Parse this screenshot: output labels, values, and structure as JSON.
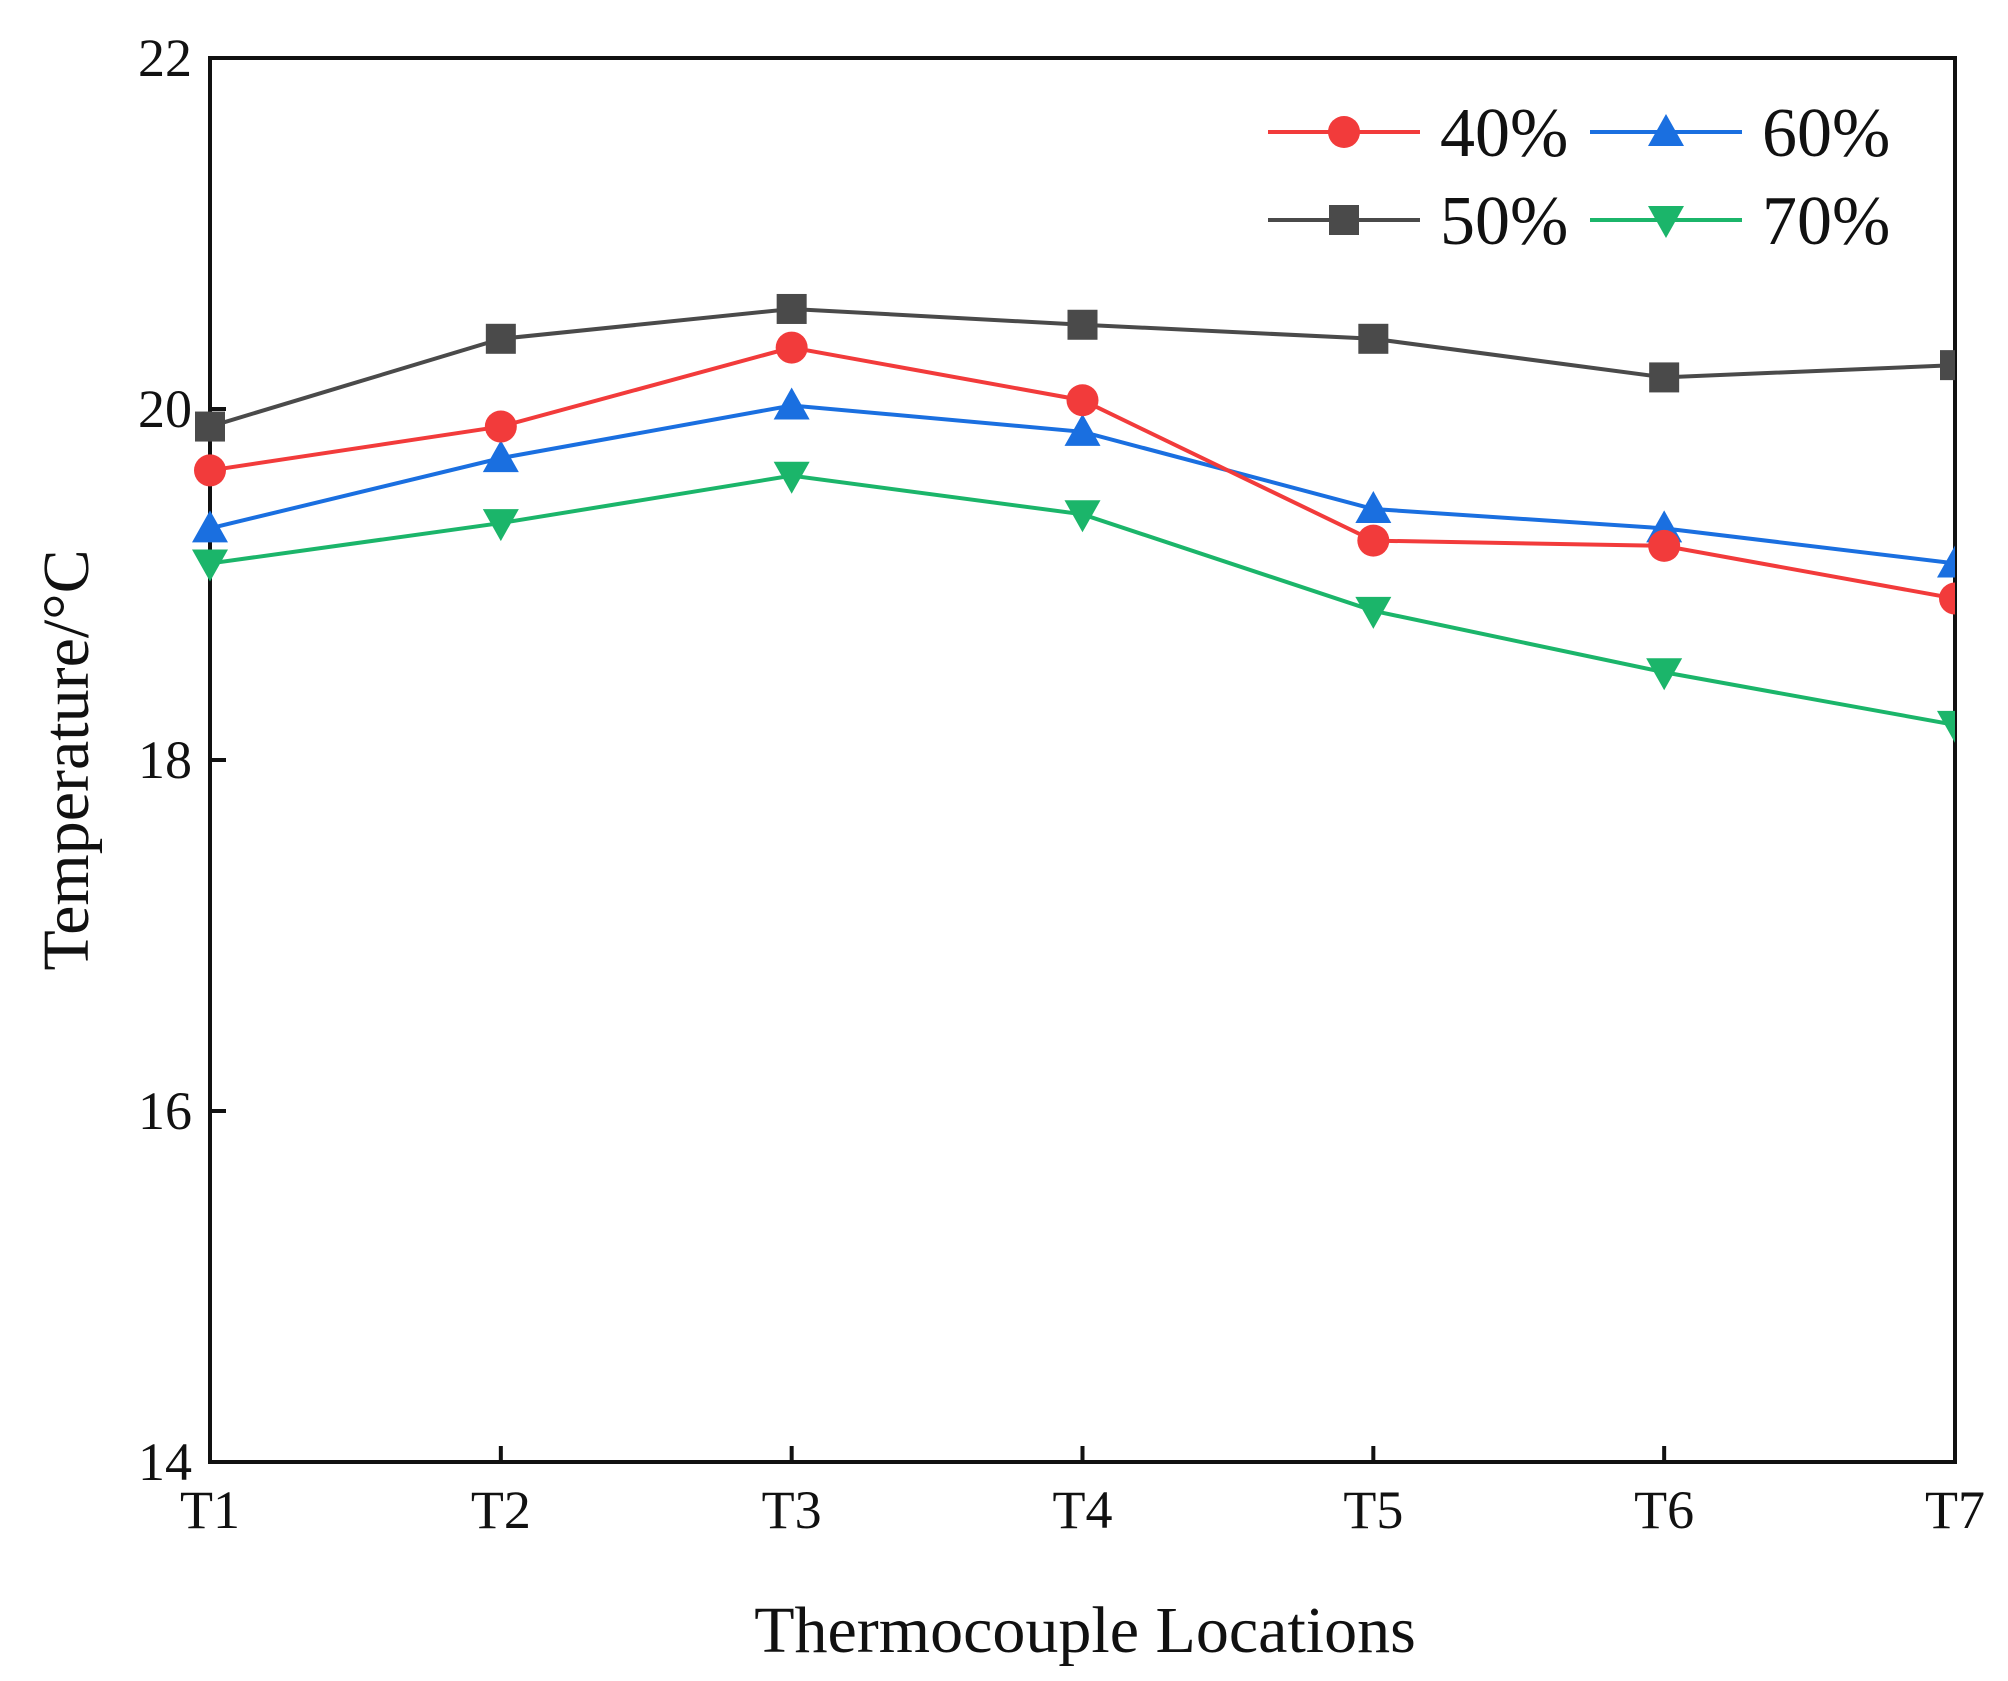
{
  "chart_data": {
    "type": "line",
    "title": "",
    "xlabel": "Thermocouple Locations",
    "ylabel": "Temperature/°C",
    "categories": [
      "T1",
      "T2",
      "T3",
      "T4",
      "T5",
      "T6",
      "T7"
    ],
    "ylim": [
      14,
      22
    ],
    "yticks": [
      14,
      16,
      18,
      20,
      22
    ],
    "grid": false,
    "legend_position": "top-right",
    "series": [
      {
        "name": "40%",
        "color": "#f23b3b",
        "marker": "circle",
        "values": [
          19.65,
          19.9,
          20.35,
          20.05,
          19.25,
          19.22,
          18.92
        ]
      },
      {
        "name": "50%",
        "color": "#4a4a4a",
        "marker": "square",
        "values": [
          19.9,
          20.4,
          20.57,
          20.48,
          20.4,
          20.18,
          20.25
        ]
      },
      {
        "name": "60%",
        "color": "#1a6fe0",
        "marker": "triangle-up",
        "values": [
          19.32,
          19.72,
          20.02,
          19.87,
          19.43,
          19.32,
          19.12
        ]
      },
      {
        "name": "70%",
        "color": "#1bb56a",
        "marker": "triangle-down",
        "values": [
          19.12,
          19.35,
          19.62,
          19.4,
          18.85,
          18.5,
          18.2
        ]
      }
    ]
  }
}
